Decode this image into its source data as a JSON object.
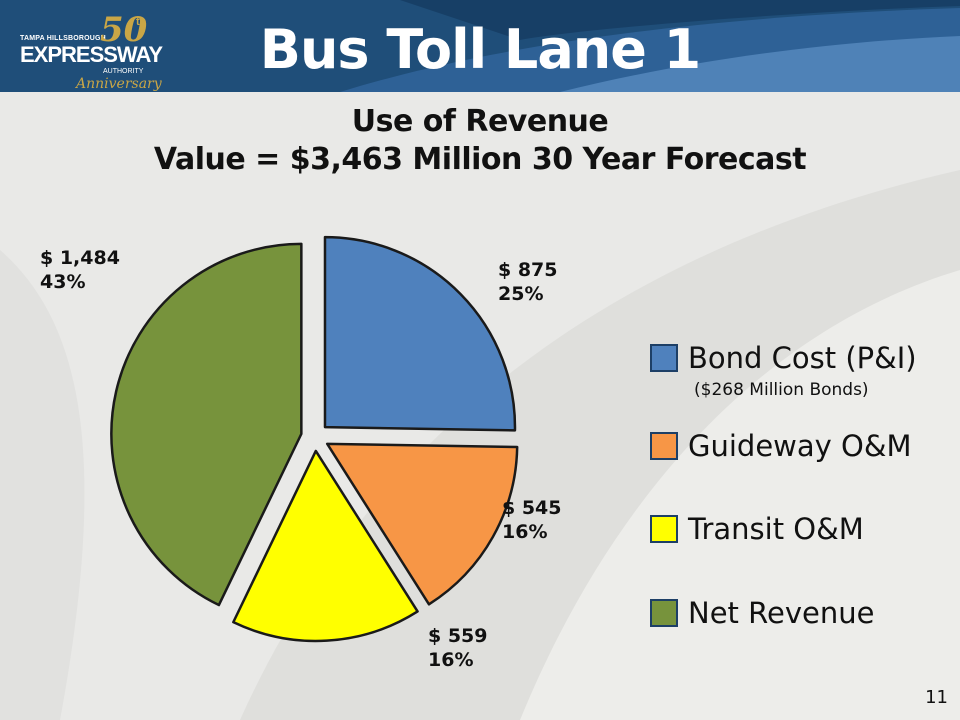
{
  "logo": {
    "top_text": "TAMPA HILLSBOROUGH",
    "brand": "EXPRESSWAY",
    "authority": "AUTHORITY",
    "anniversary_number": "50",
    "anniversary_suffix": "th",
    "anniversary_word": "Anniversary"
  },
  "header": {
    "title": "Bus Toll Lane 1"
  },
  "subtitle": {
    "line1": "Use of Revenue",
    "line2": "Value = $3,463 Million 30 Year Forecast"
  },
  "chart_data": {
    "type": "pie",
    "title": "Use of Revenue",
    "total_label": "Value = $3,463 Million 30 Year Forecast",
    "unit": "$ Million",
    "slices": [
      {
        "name": "Bond Cost (P&I)",
        "value": 875,
        "percent": 25,
        "value_label": "$ 875",
        "percent_label": "25%",
        "color": "#4f81bd"
      },
      {
        "name": "Guideway O&M",
        "value": 545,
        "percent": 16,
        "value_label": "$ 545",
        "percent_label": "16%",
        "color": "#f79646"
      },
      {
        "name": "Transit O&M",
        "value": 559,
        "percent": 16,
        "value_label": "$ 559",
        "percent_label": "16%",
        "color": "#ffff00"
      },
      {
        "name": "Net Revenue",
        "value": 1484,
        "percent": 43,
        "value_label": "$ 1,484",
        "percent_label": "43%",
        "color": "#77933c"
      }
    ],
    "legend_position": "right",
    "exploded": true
  },
  "legend": {
    "items": [
      {
        "label": "Bond Cost (P&I)",
        "color": "#4f81bd"
      },
      {
        "label": "Guideway O&M",
        "color": "#f79646"
      },
      {
        "label": "Transit O&M",
        "color": "#ffff00"
      },
      {
        "label": "Net Revenue",
        "color": "#77933c"
      }
    ],
    "bond_note": "($268 Million Bonds)"
  },
  "page_number": "11",
  "colors": {
    "header": "#1f4e79",
    "background": "#e9e9e7"
  }
}
